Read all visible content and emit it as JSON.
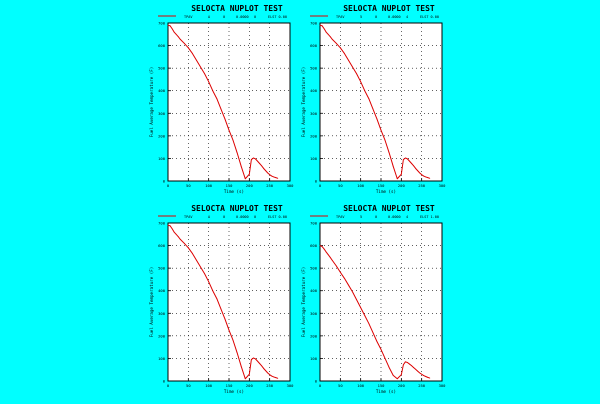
{
  "background": "#00ffff",
  "line_color": "#dd0000",
  "chart_data": [
    {
      "type": "line",
      "title": "SELOCTA NUPLOT TEST",
      "legend": [
        "TPAV",
        "A",
        "0",
        "0.0000",
        "0",
        "ELST 0.00"
      ],
      "xlabel": "Time (s)",
      "ylabel": "Fuel Average Temperature (F)",
      "xlim": [
        0,
        300
      ],
      "ylim": [
        0,
        700
      ],
      "xticks": [
        "0",
        "50",
        "100",
        "150",
        "200",
        "250",
        "300"
      ],
      "yticks": [
        "0",
        "100",
        "200",
        "300",
        "400",
        "500",
        "600",
        "700"
      ],
      "grid": true,
      "series": [
        {
          "name": "TPAV",
          "x": [
            0,
            5,
            10,
            15,
            20,
            25,
            30,
            40,
            50,
            60,
            70,
            80,
            90,
            100,
            110,
            120,
            130,
            140,
            150,
            160,
            170,
            180,
            190,
            200,
            205,
            210,
            215,
            220,
            225,
            230,
            235,
            240,
            245,
            250,
            255,
            260,
            265,
            270
          ],
          "y": [
            690,
            688,
            675,
            660,
            650,
            640,
            628,
            610,
            590,
            565,
            535,
            505,
            475,
            440,
            400,
            365,
            320,
            275,
            225,
            180,
            125,
            65,
            10,
            30,
            95,
            102,
            98,
            88,
            78,
            68,
            56,
            46,
            36,
            28,
            22,
            18,
            15,
            12
          ]
        }
      ]
    },
    {
      "type": "line",
      "title": "SELOCTA NUPLOT TEST",
      "legend": [
        "TPAV",
        "5",
        "0",
        "0.0000",
        "4",
        "ELST 0.00"
      ],
      "xlabel": "Time (s)",
      "ylabel": "Fuel Average Temperature (F)",
      "xlim": [
        0,
        300
      ],
      "ylim": [
        0,
        700
      ],
      "xticks": [
        "0",
        "50",
        "100",
        "150",
        "200",
        "250",
        "300"
      ],
      "yticks": [
        "0",
        "100",
        "200",
        "300",
        "400",
        "500",
        "600",
        "700"
      ],
      "grid": true,
      "series": [
        {
          "name": "TPAV",
          "x": [
            0,
            5,
            10,
            15,
            20,
            25,
            30,
            40,
            50,
            60,
            70,
            80,
            90,
            100,
            110,
            120,
            130,
            140,
            150,
            160,
            170,
            180,
            190,
            200,
            205,
            210,
            215,
            220,
            225,
            230,
            235,
            240,
            245,
            250,
            255,
            260,
            265,
            270
          ],
          "y": [
            690,
            688,
            675,
            660,
            650,
            640,
            628,
            610,
            590,
            565,
            535,
            505,
            475,
            440,
            400,
            365,
            320,
            275,
            225,
            180,
            125,
            65,
            10,
            30,
            95,
            102,
            98,
            88,
            78,
            68,
            56,
            46,
            36,
            28,
            22,
            18,
            15,
            12
          ]
        }
      ]
    },
    {
      "type": "line",
      "title": "SELOCTA NUPLOT TEST",
      "legend": [
        "TPAV",
        "A",
        "0",
        "0.0000",
        "0",
        "ELST 0.00"
      ],
      "xlabel": "Time (s)",
      "ylabel": "Fuel Average Temperature (F)",
      "xlim": [
        0,
        300
      ],
      "ylim": [
        0,
        700
      ],
      "xticks": [
        "0",
        "50",
        "100",
        "150",
        "200",
        "250",
        "300"
      ],
      "yticks": [
        "0",
        "100",
        "200",
        "300",
        "400",
        "500",
        "600",
        "700"
      ],
      "grid": true,
      "series": [
        {
          "name": "TPAV",
          "x": [
            0,
            5,
            10,
            15,
            20,
            25,
            30,
            40,
            50,
            60,
            70,
            80,
            90,
            100,
            110,
            120,
            130,
            140,
            150,
            160,
            170,
            180,
            190,
            200,
            205,
            210,
            215,
            220,
            225,
            230,
            235,
            240,
            245,
            250,
            255,
            260,
            265,
            270
          ],
          "y": [
            690,
            688,
            675,
            660,
            650,
            640,
            628,
            610,
            590,
            565,
            535,
            505,
            475,
            440,
            400,
            365,
            320,
            275,
            225,
            180,
            125,
            65,
            10,
            30,
            95,
            102,
            98,
            88,
            78,
            68,
            56,
            46,
            36,
            28,
            22,
            18,
            15,
            12
          ]
        }
      ]
    },
    {
      "type": "line",
      "title": "SELOCTA NUPLOT TEST",
      "legend": [
        "TPAV",
        "5",
        "0",
        "0.0000",
        "4",
        "ELST 1.00"
      ],
      "xlabel": "Time (s)",
      "ylabel": "Fuel Average Temperature (F)",
      "xlim": [
        0,
        300
      ],
      "ylim": [
        0,
        700
      ],
      "xticks": [
        "0",
        "50",
        "100",
        "150",
        "200",
        "250",
        "300"
      ],
      "yticks": [
        "0",
        "100",
        "200",
        "300",
        "400",
        "500",
        "600",
        "700"
      ],
      "grid": true,
      "series": [
        {
          "name": "TPAV",
          "x": [
            0,
            5,
            10,
            15,
            20,
            25,
            30,
            40,
            50,
            60,
            70,
            80,
            90,
            100,
            110,
            120,
            130,
            140,
            150,
            160,
            170,
            180,
            190,
            200,
            205,
            210,
            215,
            220,
            225,
            230,
            235,
            240,
            245,
            250,
            255,
            260,
            265,
            270
          ],
          "y": [
            600,
            596,
            585,
            572,
            560,
            548,
            535,
            510,
            482,
            455,
            425,
            395,
            360,
            325,
            290,
            255,
            215,
            175,
            140,
            100,
            60,
            25,
            10,
            28,
            72,
            85,
            82,
            75,
            68,
            60,
            52,
            44,
            36,
            30,
            24,
            20,
            16,
            13
          ]
        }
      ]
    }
  ]
}
